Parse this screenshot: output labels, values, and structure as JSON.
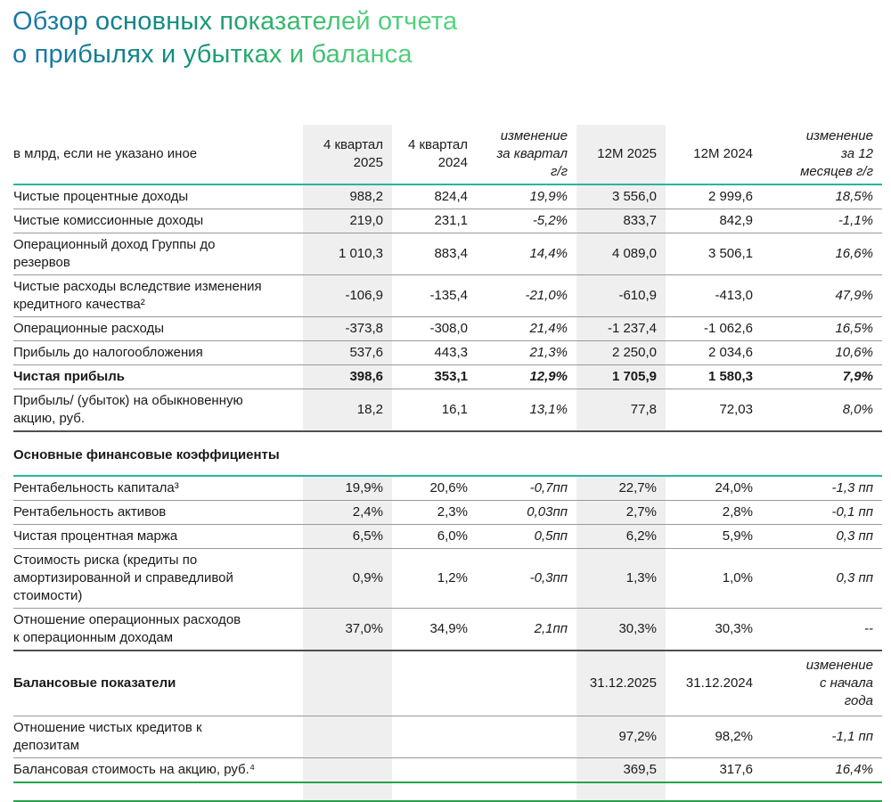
{
  "title": "Обзор основных показателей отчета\nо прибылях и убытках и баланса",
  "colors": {
    "title_gradient_start": "#1b76ae",
    "title_gradient_mid": "#11927a",
    "title_gradient_end": "#53d480",
    "header_rule": "#2cb3a0",
    "bottom_rule": "#28a24c",
    "shaded_column": "#efefef",
    "row_rule": "#999999",
    "section_rule": "#4f4f4f"
  },
  "table": {
    "header": {
      "cells": [
        "в млрд, если не указано иное",
        "4 квартал\n2025",
        "4 квартал\n2024",
        "изменение\nза квартал\nг/г",
        "12M 2025",
        "12M 2024",
        "изменение\nза 12\nмесяцев г/г"
      ]
    },
    "rows": [
      {
        "type": "data",
        "border": "gray",
        "cells": [
          "Чистые процентные доходы",
          "988,2",
          "824,4",
          "19,9%",
          "3 556,0",
          "2 999,6",
          "18,5%"
        ]
      },
      {
        "type": "data",
        "border": "gray",
        "cells": [
          "Чистые комиссионные доходы",
          "219,0",
          "231,1",
          "-5,2%",
          "833,7",
          "842,9",
          "-1,1%"
        ]
      },
      {
        "type": "data",
        "border": "gray",
        "cells": [
          "Операционный доход Группы до\nрезервов",
          "1 010,3",
          "883,4",
          "14,4%",
          "4 089,0",
          "3 506,1",
          "16,6%"
        ]
      },
      {
        "type": "data",
        "border": "gray",
        "cells": [
          "Чистые расходы вследствие изменения\nкредитного качества²",
          "-106,9",
          "-135,4",
          "-21,0%",
          "-610,9",
          "-413,0",
          "47,9%"
        ]
      },
      {
        "type": "data",
        "border": "gray",
        "cells": [
          "Операционные расходы",
          "-373,8",
          "-308,0",
          "21,4%",
          "-1 237,4",
          "-1 062,6",
          "16,5%"
        ]
      },
      {
        "type": "data",
        "border": "gray",
        "cells": [
          "Прибыль до налогообложения",
          "537,6",
          "443,3",
          "21,3%",
          "2 250,0",
          "2 034,6",
          "10,6%"
        ]
      },
      {
        "type": "data",
        "border": "gray",
        "bold": true,
        "cells": [
          "Чистая прибыль",
          "398,6",
          "353,1",
          "12,9%",
          "1 705,9",
          "1 580,3",
          "7,9%"
        ]
      },
      {
        "type": "data",
        "border": "dark",
        "cells": [
          "Прибыль/ (убыток) на обыкновенную\nакцию, руб.",
          "18,2",
          "16,1",
          "13,1%",
          "77,8",
          "72,03",
          "8,0%"
        ]
      },
      {
        "type": "section",
        "border": "teal",
        "cells": [
          "Основные финансовые коэффициенты",
          "",
          "",
          "",
          "",
          "",
          ""
        ]
      },
      {
        "type": "data",
        "border": "gray",
        "cells": [
          "Рентабельность капитала³",
          "19,9%",
          "20,6%",
          "-0,7пп",
          "22,7%",
          "24,0%",
          "-1,3 пп"
        ]
      },
      {
        "type": "data",
        "border": "gray",
        "cells": [
          "Рентабельность активов",
          "2,4%",
          "2,3%",
          "0,03пп",
          "2,7%",
          "2,8%",
          "-0,1 пп"
        ]
      },
      {
        "type": "data",
        "border": "gray",
        "cells": [
          "Чистая процентная маржа",
          "6,5%",
          "6,0%",
          "0,5пп",
          "6,2%",
          "5,9%",
          "0,3 пп"
        ]
      },
      {
        "type": "data",
        "border": "gray",
        "cells": [
          "Стоимость риска (кредиты по\nамортизированной и справедливой\nстоимости)",
          "0,9%",
          "1,2%",
          "-0,3пп",
          "1,3%",
          "1,0%",
          "0,3 пп"
        ]
      },
      {
        "type": "data",
        "border": "dark",
        "cells": [
          "Отношение операционных расходов\nк операционным доходам",
          "37,0%",
          "34,9%",
          "2,1пп",
          "30,3%",
          "30,3%",
          "--"
        ]
      },
      {
        "type": "section_balance",
        "border": "gray",
        "cells": [
          "Балансовые показатели",
          "",
          "",
          "",
          "31.12.2025",
          "31.12.2024",
          "изменение\nс начала\nгода"
        ]
      },
      {
        "type": "data",
        "border": "gray",
        "cells": [
          "Отношение чистых кредитов к\nдепозитам",
          "",
          "",
          "",
          "97,2%",
          "98,2%",
          "-1,1 пп"
        ]
      },
      {
        "type": "data",
        "border": "green",
        "cells": [
          "Балансовая стоимость на акцию, руб.⁴",
          "",
          "",
          "",
          "369,5",
          "317,6",
          "16,4%"
        ]
      },
      {
        "type": "empty",
        "border": "green",
        "cells": [
          "",
          "",
          "",
          "",
          "",
          "",
          ""
        ]
      }
    ]
  }
}
